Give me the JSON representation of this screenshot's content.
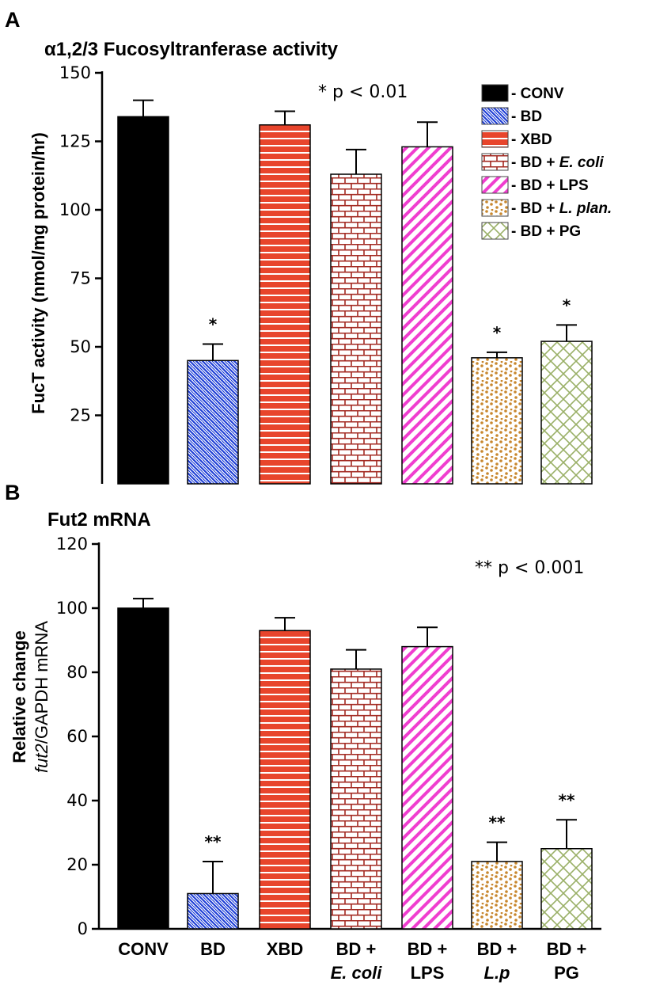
{
  "panel_a_label": "A",
  "panel_b_label": "B",
  "chart_data": [
    {
      "type": "bar",
      "title": "α1,2/3 Fucosyltranferase activity",
      "ylabel": "FucT activity (nmol/mg protein/hr)",
      "ylim": [
        0,
        150
      ],
      "yticks": [
        25,
        50,
        75,
        100,
        125,
        150
      ],
      "categories": [
        "CONV",
        "BD",
        "XBD",
        "BD + E. coli",
        "BD + LPS",
        "BD + L. plan.",
        "BD + PG"
      ],
      "values": [
        134,
        45,
        131,
        113,
        123,
        46,
        52
      ],
      "errors": [
        6,
        6,
        5,
        9,
        9,
        2,
        6
      ],
      "significance": [
        "",
        "*",
        "",
        "",
        "",
        "*",
        "*"
      ],
      "annotation": "* p < 0.01",
      "legend": [
        {
          "pattern": "solid",
          "prefix": "- ",
          "label": "CONV",
          "italic": ""
        },
        {
          "pattern": "diag-blue",
          "prefix": "- ",
          "label": "BD",
          "italic": ""
        },
        {
          "pattern": "hlines-red",
          "prefix": "- ",
          "label": "XBD",
          "italic": ""
        },
        {
          "pattern": "bricks",
          "prefix": "- ",
          "label": "BD + ",
          "italic": "E. coli"
        },
        {
          "pattern": "diag-magenta",
          "prefix": "- ",
          "label": "BD + LPS",
          "italic": ""
        },
        {
          "pattern": "dots",
          "prefix": "- ",
          "label": "BD + ",
          "italic": "L. plan."
        },
        {
          "pattern": "cross-green",
          "prefix": "- ",
          "label": "BD + PG",
          "italic": ""
        }
      ],
      "legend_position": "top-right"
    },
    {
      "type": "bar",
      "title": "Fut2 mRNA",
      "ylabel_line1": "Relative change",
      "ylabel_line2_italic": "fut2",
      "ylabel_line2_rest": "/GAPDH mRNA",
      "ylim": [
        0,
        120
      ],
      "yticks": [
        0,
        20,
        40,
        60,
        80,
        100,
        120
      ],
      "categories": [
        "CONV",
        "BD",
        "XBD",
        "BD + E. coli",
        "BD + LPS",
        "BD + L.p",
        "BD + PG"
      ],
      "x_labels": [
        {
          "line1": "CONV",
          "line2": "",
          "italic2": false
        },
        {
          "line1": "BD",
          "line2": "",
          "italic2": false
        },
        {
          "line1": "XBD",
          "line2": "",
          "italic2": false
        },
        {
          "line1": "BD +",
          "line2": "E. coli",
          "italic2": true
        },
        {
          "line1": "BD +",
          "line2": "LPS",
          "italic2": false
        },
        {
          "line1": "BD +",
          "line2": "L.p",
          "italic2": true
        },
        {
          "line1": "BD +",
          "line2": "PG",
          "italic2": false
        }
      ],
      "values": [
        100,
        11,
        93,
        81,
        88,
        21,
        25
      ],
      "errors": [
        3,
        10,
        4,
        6,
        6,
        6,
        9
      ],
      "significance": [
        "",
        "**",
        "",
        "",
        "",
        "**",
        "**"
      ],
      "annotation": "** p < 0.001"
    }
  ]
}
